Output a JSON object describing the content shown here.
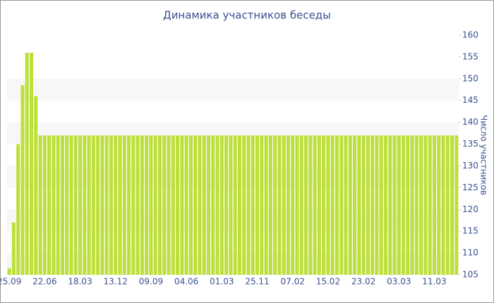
{
  "chart_data": {
    "type": "bar",
    "title": "Динамика участников беседы",
    "y_label": "Число участников",
    "categories": [
      "25.09",
      null,
      null,
      null,
      null,
      null,
      null,
      null,
      "22.06",
      null,
      null,
      null,
      null,
      null,
      null,
      null,
      "18.03",
      null,
      null,
      null,
      null,
      null,
      null,
      null,
      "13.12",
      null,
      null,
      null,
      null,
      null,
      null,
      null,
      "09.09",
      null,
      null,
      null,
      null,
      null,
      null,
      null,
      "04.06",
      null,
      null,
      null,
      null,
      null,
      null,
      null,
      "01.03",
      null,
      null,
      null,
      null,
      null,
      null,
      null,
      "25.11",
      null,
      null,
      null,
      null,
      null,
      null,
      null,
      "07.02",
      null,
      null,
      null,
      null,
      null,
      null,
      null,
      "15.02",
      null,
      null,
      null,
      null,
      null,
      null,
      null,
      "23.02",
      null,
      null,
      null,
      null,
      null,
      null,
      null,
      "03.03",
      null,
      null,
      null,
      null,
      null,
      null,
      null,
      "11.03",
      null,
      null,
      null,
      null,
      null
    ],
    "values": [
      106.5,
      117,
      135,
      148.5,
      156,
      156,
      146,
      137,
      137,
      137,
      137,
      137,
      137,
      137,
      137,
      137,
      137,
      137,
      137,
      137,
      137,
      137,
      137,
      137,
      137,
      137,
      137,
      137,
      137,
      137,
      137,
      137,
      137,
      137,
      137,
      137,
      137,
      137,
      137,
      137,
      137,
      137,
      137,
      137,
      137,
      137,
      137,
      137,
      137,
      137,
      137,
      137,
      137,
      137,
      137,
      137,
      137,
      137,
      137,
      137,
      137,
      137,
      137,
      137,
      137,
      137,
      137,
      137,
      137,
      137,
      137,
      137,
      137,
      137,
      137,
      137,
      137,
      137,
      137,
      137,
      137,
      137,
      137,
      137,
      137,
      137,
      137,
      137,
      137,
      137,
      137,
      137,
      137,
      137,
      137,
      137,
      137,
      137,
      137,
      137,
      137,
      137
    ],
    "color": "#bde03a",
    "ylim": [
      105,
      160
    ],
    "yticks": [
      105,
      110,
      115,
      120,
      125,
      130,
      135,
      140,
      145,
      150,
      155,
      160
    ],
    "y_axis_side": "right",
    "grid": "bands"
  }
}
